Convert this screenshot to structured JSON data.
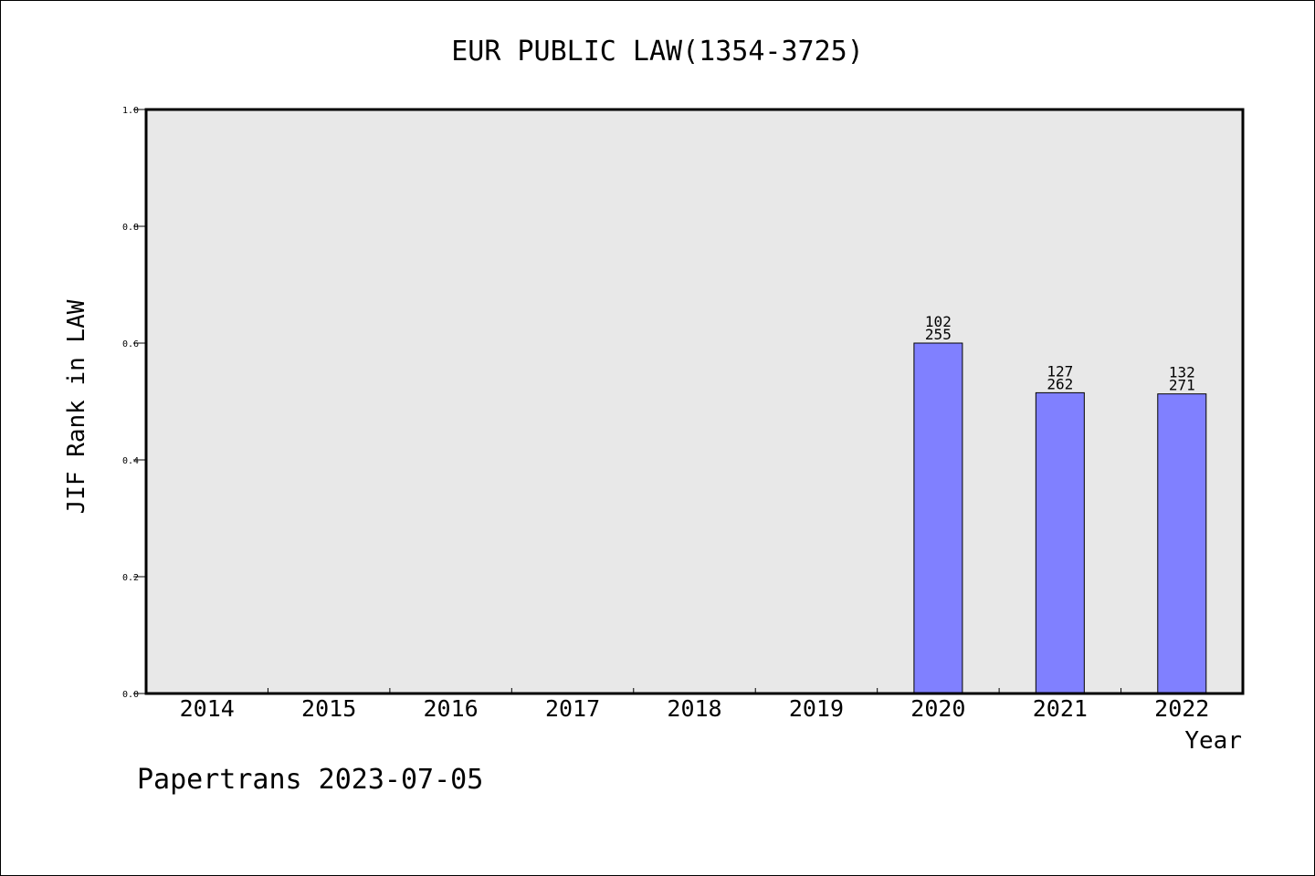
{
  "chart_data": {
    "type": "bar",
    "title": "EUR PUBLIC LAW(1354-3725)",
    "xlabel": "Year",
    "ylabel": "JIF Rank in LAW",
    "ylim": [
      0,
      1.0
    ],
    "yticks": [
      "0.0",
      "0.2",
      "0.4",
      "0.6",
      "0.8",
      "1.0"
    ],
    "categories": [
      "2014",
      "2015",
      "2016",
      "2017",
      "2018",
      "2019",
      "2020",
      "2021",
      "2022"
    ],
    "values": [
      null,
      null,
      null,
      null,
      null,
      null,
      0.6,
      0.515,
      0.513
    ],
    "bar_labels": [
      null,
      null,
      null,
      null,
      null,
      null,
      {
        "rank": "102",
        "total": "255"
      },
      {
        "rank": "127",
        "total": "262"
      },
      {
        "rank": "132",
        "total": "271"
      }
    ],
    "bar_color": "#8080ff",
    "plot_background": "#e8e8e8",
    "grid": false,
    "legend": "none"
  },
  "footer": "Papertrans 2023-07-05"
}
